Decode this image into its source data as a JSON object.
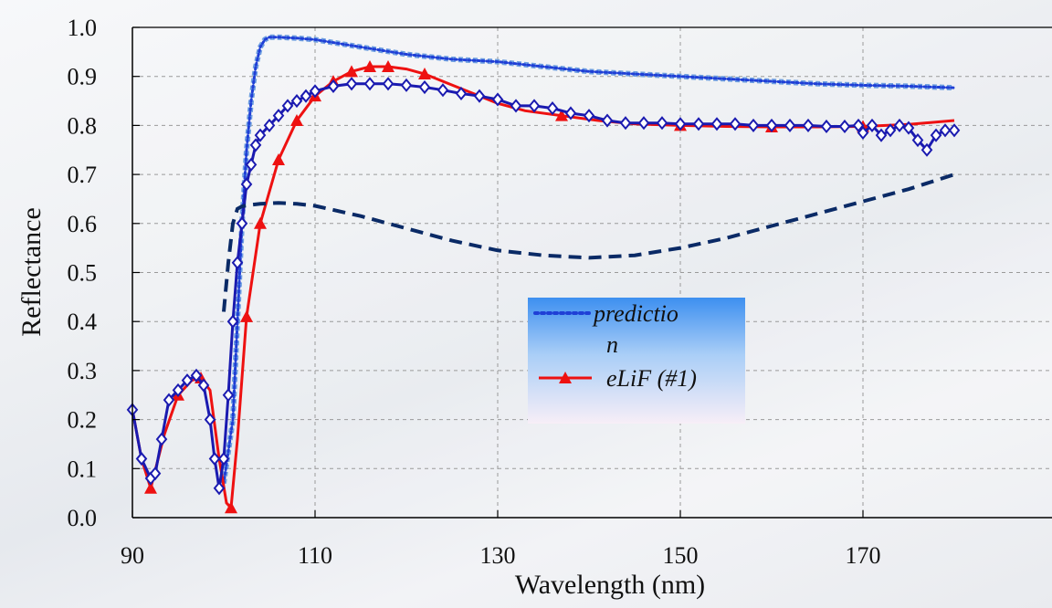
{
  "chart_data": {
    "type": "line",
    "xlabel": "Wavelength (nm)",
    "ylabel": "Reflectance",
    "xlim": [
      90,
      180
    ],
    "ylim": [
      0.0,
      1.0
    ],
    "x_ticks": [
      90,
      110,
      130,
      150,
      170
    ],
    "x_tick_labels": [
      "90",
      "110",
      "130",
      "150",
      "170"
    ],
    "y_ticks": [
      0.0,
      0.1,
      0.2,
      0.3,
      0.4,
      0.5,
      0.6,
      0.7,
      0.8,
      0.9,
      1.0
    ],
    "y_tick_labels": [
      "0.0",
      "0.1",
      "0.2",
      "0.3",
      "0.4",
      "0.5",
      "0.6",
      "0.7",
      "0.8",
      "0.9",
      "1.0"
    ],
    "grid": true,
    "legend": {
      "placement": "center",
      "entries": [
        {
          "label": "prediction",
          "series": 0
        },
        {
          "label": "eLiF (#1)",
          "series": 1
        }
      ]
    },
    "series": [
      {
        "name": "prediction",
        "color": "#1f3fd6",
        "style": "dotted",
        "x": [
          100.0,
          101.0,
          102.0,
          102.5,
          103.0,
          103.5,
          104.0,
          104.5,
          105.0,
          106.0,
          108.0,
          110.0,
          115.0,
          120.0,
          125.0,
          130.0,
          135.0,
          140.0,
          145.0,
          150.0,
          155.0,
          160.0,
          165.0,
          170.0,
          175.0,
          180.0
        ],
        "y": [
          0.07,
          0.2,
          0.6,
          0.75,
          0.85,
          0.92,
          0.96,
          0.975,
          0.98,
          0.98,
          0.978,
          0.975,
          0.96,
          0.945,
          0.935,
          0.93,
          0.92,
          0.91,
          0.905,
          0.9,
          0.895,
          0.89,
          0.885,
          0.882,
          0.88,
          0.877
        ]
      },
      {
        "name": "eLiF (#1)",
        "color": "#ee1111",
        "style": "solid-triangle",
        "x": [
          90.0,
          91.0,
          92.0,
          93.5,
          95.0,
          96.5,
          97.5,
          98.5,
          99.5,
          100.3,
          100.8,
          101.5,
          102.5,
          104.0,
          106.0,
          108.0,
          110.0,
          112.0,
          114.0,
          116.0,
          118.0,
          120.0,
          122.0,
          124.0,
          126.0,
          128.0,
          130.0,
          133.0,
          137.0,
          141.0,
          145.0,
          150.0,
          155.0,
          160.0,
          165.0,
          170.0,
          175.0,
          180.0
        ],
        "y": [
          0.22,
          0.12,
          0.06,
          0.17,
          0.25,
          0.28,
          0.285,
          0.26,
          0.12,
          0.03,
          0.02,
          0.16,
          0.41,
          0.6,
          0.73,
          0.81,
          0.86,
          0.89,
          0.91,
          0.92,
          0.92,
          0.915,
          0.905,
          0.89,
          0.875,
          0.86,
          0.845,
          0.83,
          0.82,
          0.81,
          0.803,
          0.8,
          0.798,
          0.797,
          0.797,
          0.798,
          0.802,
          0.81
        ]
      },
      {
        "name": "",
        "color": "#1a1ab0",
        "style": "solid-diamond",
        "x": [
          90.0,
          91.0,
          92.0,
          92.5,
          93.2,
          94.0,
          95.0,
          96.0,
          97.0,
          97.8,
          98.5,
          99.0,
          99.5,
          100.0,
          100.5,
          101.0,
          101.5,
          102.0,
          102.5,
          103.0,
          103.5,
          104.0,
          105.0,
          106.0,
          107.0,
          108.0,
          109.0,
          110.0,
          112.0,
          114.0,
          116.0,
          118.0,
          120.0,
          122.0,
          124.0,
          126.0,
          128.0,
          130.0,
          132.0,
          134.0,
          136.0,
          138.0,
          140.0,
          142.0,
          144.0,
          146.0,
          148.0,
          150.0,
          152.0,
          154.0,
          156.0,
          158.0,
          160.0,
          162.0,
          164.0,
          166.0,
          168.0,
          169.5,
          170.0,
          171.0,
          172.0,
          173.0,
          174.0,
          175.0,
          176.0,
          177.0,
          178.0,
          179.0,
          180.0
        ],
        "y": [
          0.22,
          0.12,
          0.08,
          0.09,
          0.16,
          0.24,
          0.26,
          0.28,
          0.29,
          0.27,
          0.2,
          0.12,
          0.06,
          0.12,
          0.25,
          0.4,
          0.52,
          0.6,
          0.68,
          0.72,
          0.76,
          0.78,
          0.8,
          0.82,
          0.84,
          0.85,
          0.86,
          0.87,
          0.88,
          0.885,
          0.885,
          0.885,
          0.882,
          0.878,
          0.872,
          0.865,
          0.86,
          0.853,
          0.84,
          0.84,
          0.835,
          0.825,
          0.82,
          0.81,
          0.805,
          0.805,
          0.805,
          0.803,
          0.803,
          0.803,
          0.803,
          0.8,
          0.8,
          0.8,
          0.8,
          0.798,
          0.798,
          0.8,
          0.785,
          0.8,
          0.78,
          0.79,
          0.8,
          0.795,
          0.77,
          0.75,
          0.78,
          0.79,
          0.79
        ]
      },
      {
        "name": "",
        "color": "#0a2a66",
        "style": "dashed",
        "x": [
          100.0,
          100.5,
          101.0,
          101.5,
          102.0,
          103.0,
          104.0,
          106.0,
          108.0,
          110.0,
          115.0,
          120.0,
          125.0,
          130.0,
          135.0,
          140.0,
          145.0,
          150.0,
          155.0,
          160.0,
          165.0,
          170.0,
          175.0,
          180.0
        ],
        "y": [
          0.42,
          0.52,
          0.6,
          0.63,
          0.635,
          0.638,
          0.64,
          0.642,
          0.64,
          0.636,
          0.615,
          0.59,
          0.565,
          0.545,
          0.535,
          0.53,
          0.535,
          0.55,
          0.57,
          0.595,
          0.62,
          0.645,
          0.67,
          0.7
        ]
      }
    ]
  }
}
